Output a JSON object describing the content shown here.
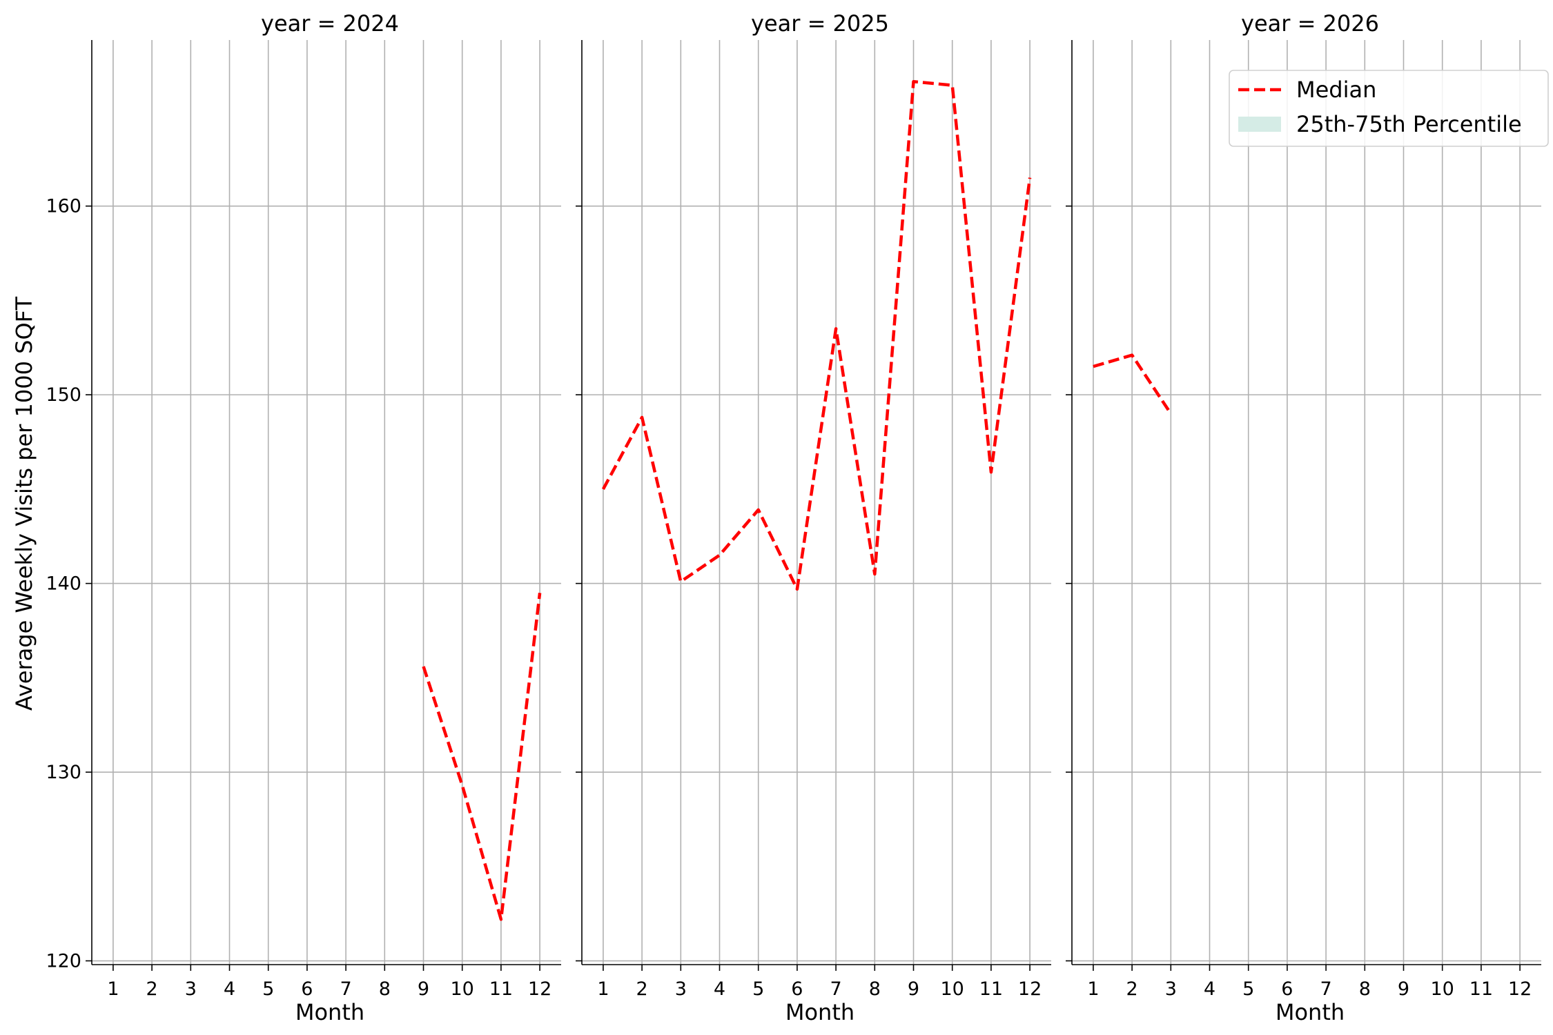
{
  "chart_data": {
    "type": "line",
    "ylabel": "Average Weekly Visits per 1000 SQFT",
    "ylim": [
      119.8,
      168.8
    ],
    "yticks": [
      120,
      130,
      140,
      150,
      160
    ],
    "xlim": [
      0.45,
      12.55
    ],
    "grid": true,
    "legend_placement": "top-right",
    "legend": [
      {
        "label": "Median",
        "kind": "line",
        "color": "#ff0000"
      },
      {
        "label": "25th-75th Percentile",
        "kind": "band",
        "color": "#d5ece6"
      }
    ],
    "panels": [
      {
        "title": "year = 2024",
        "xlabel": "Month",
        "xticks": [
          "1",
          "2",
          "3",
          "4",
          "5",
          "6",
          "7",
          "8",
          "9",
          "10",
          "11",
          "12"
        ],
        "series": [
          {
            "name": "Median",
            "color": "#ff0000",
            "x": [
              9,
              10,
              11,
              12
            ],
            "y": [
              135.6,
              129.3,
              122.2,
              139.5
            ]
          }
        ]
      },
      {
        "title": "year = 2025",
        "xlabel": "Month",
        "xticks": [
          "1",
          "2",
          "3",
          "4",
          "5",
          "6",
          "7",
          "8",
          "9",
          "10",
          "11",
          "12"
        ],
        "series": [
          {
            "name": "Median",
            "color": "#ff0000",
            "x": [
              1,
              2,
              3,
              4,
              5,
              6,
              7,
              8,
              9,
              10,
              11,
              12
            ],
            "y": [
              145.0,
              148.8,
              140.1,
              141.5,
              143.9,
              139.7,
              153.5,
              140.5,
              166.6,
              166.4,
              145.9,
              161.5
            ]
          }
        ]
      },
      {
        "title": "year = 2026",
        "xlabel": "Month",
        "xticks": [
          "1",
          "2",
          "3",
          "4",
          "5",
          "6",
          "7",
          "8",
          "9",
          "10",
          "11",
          "12"
        ],
        "series": [
          {
            "name": "Median",
            "color": "#ff0000",
            "x": [
              1,
              2,
              3
            ],
            "y": [
              151.5,
              152.1,
              149.0
            ]
          }
        ]
      }
    ]
  }
}
